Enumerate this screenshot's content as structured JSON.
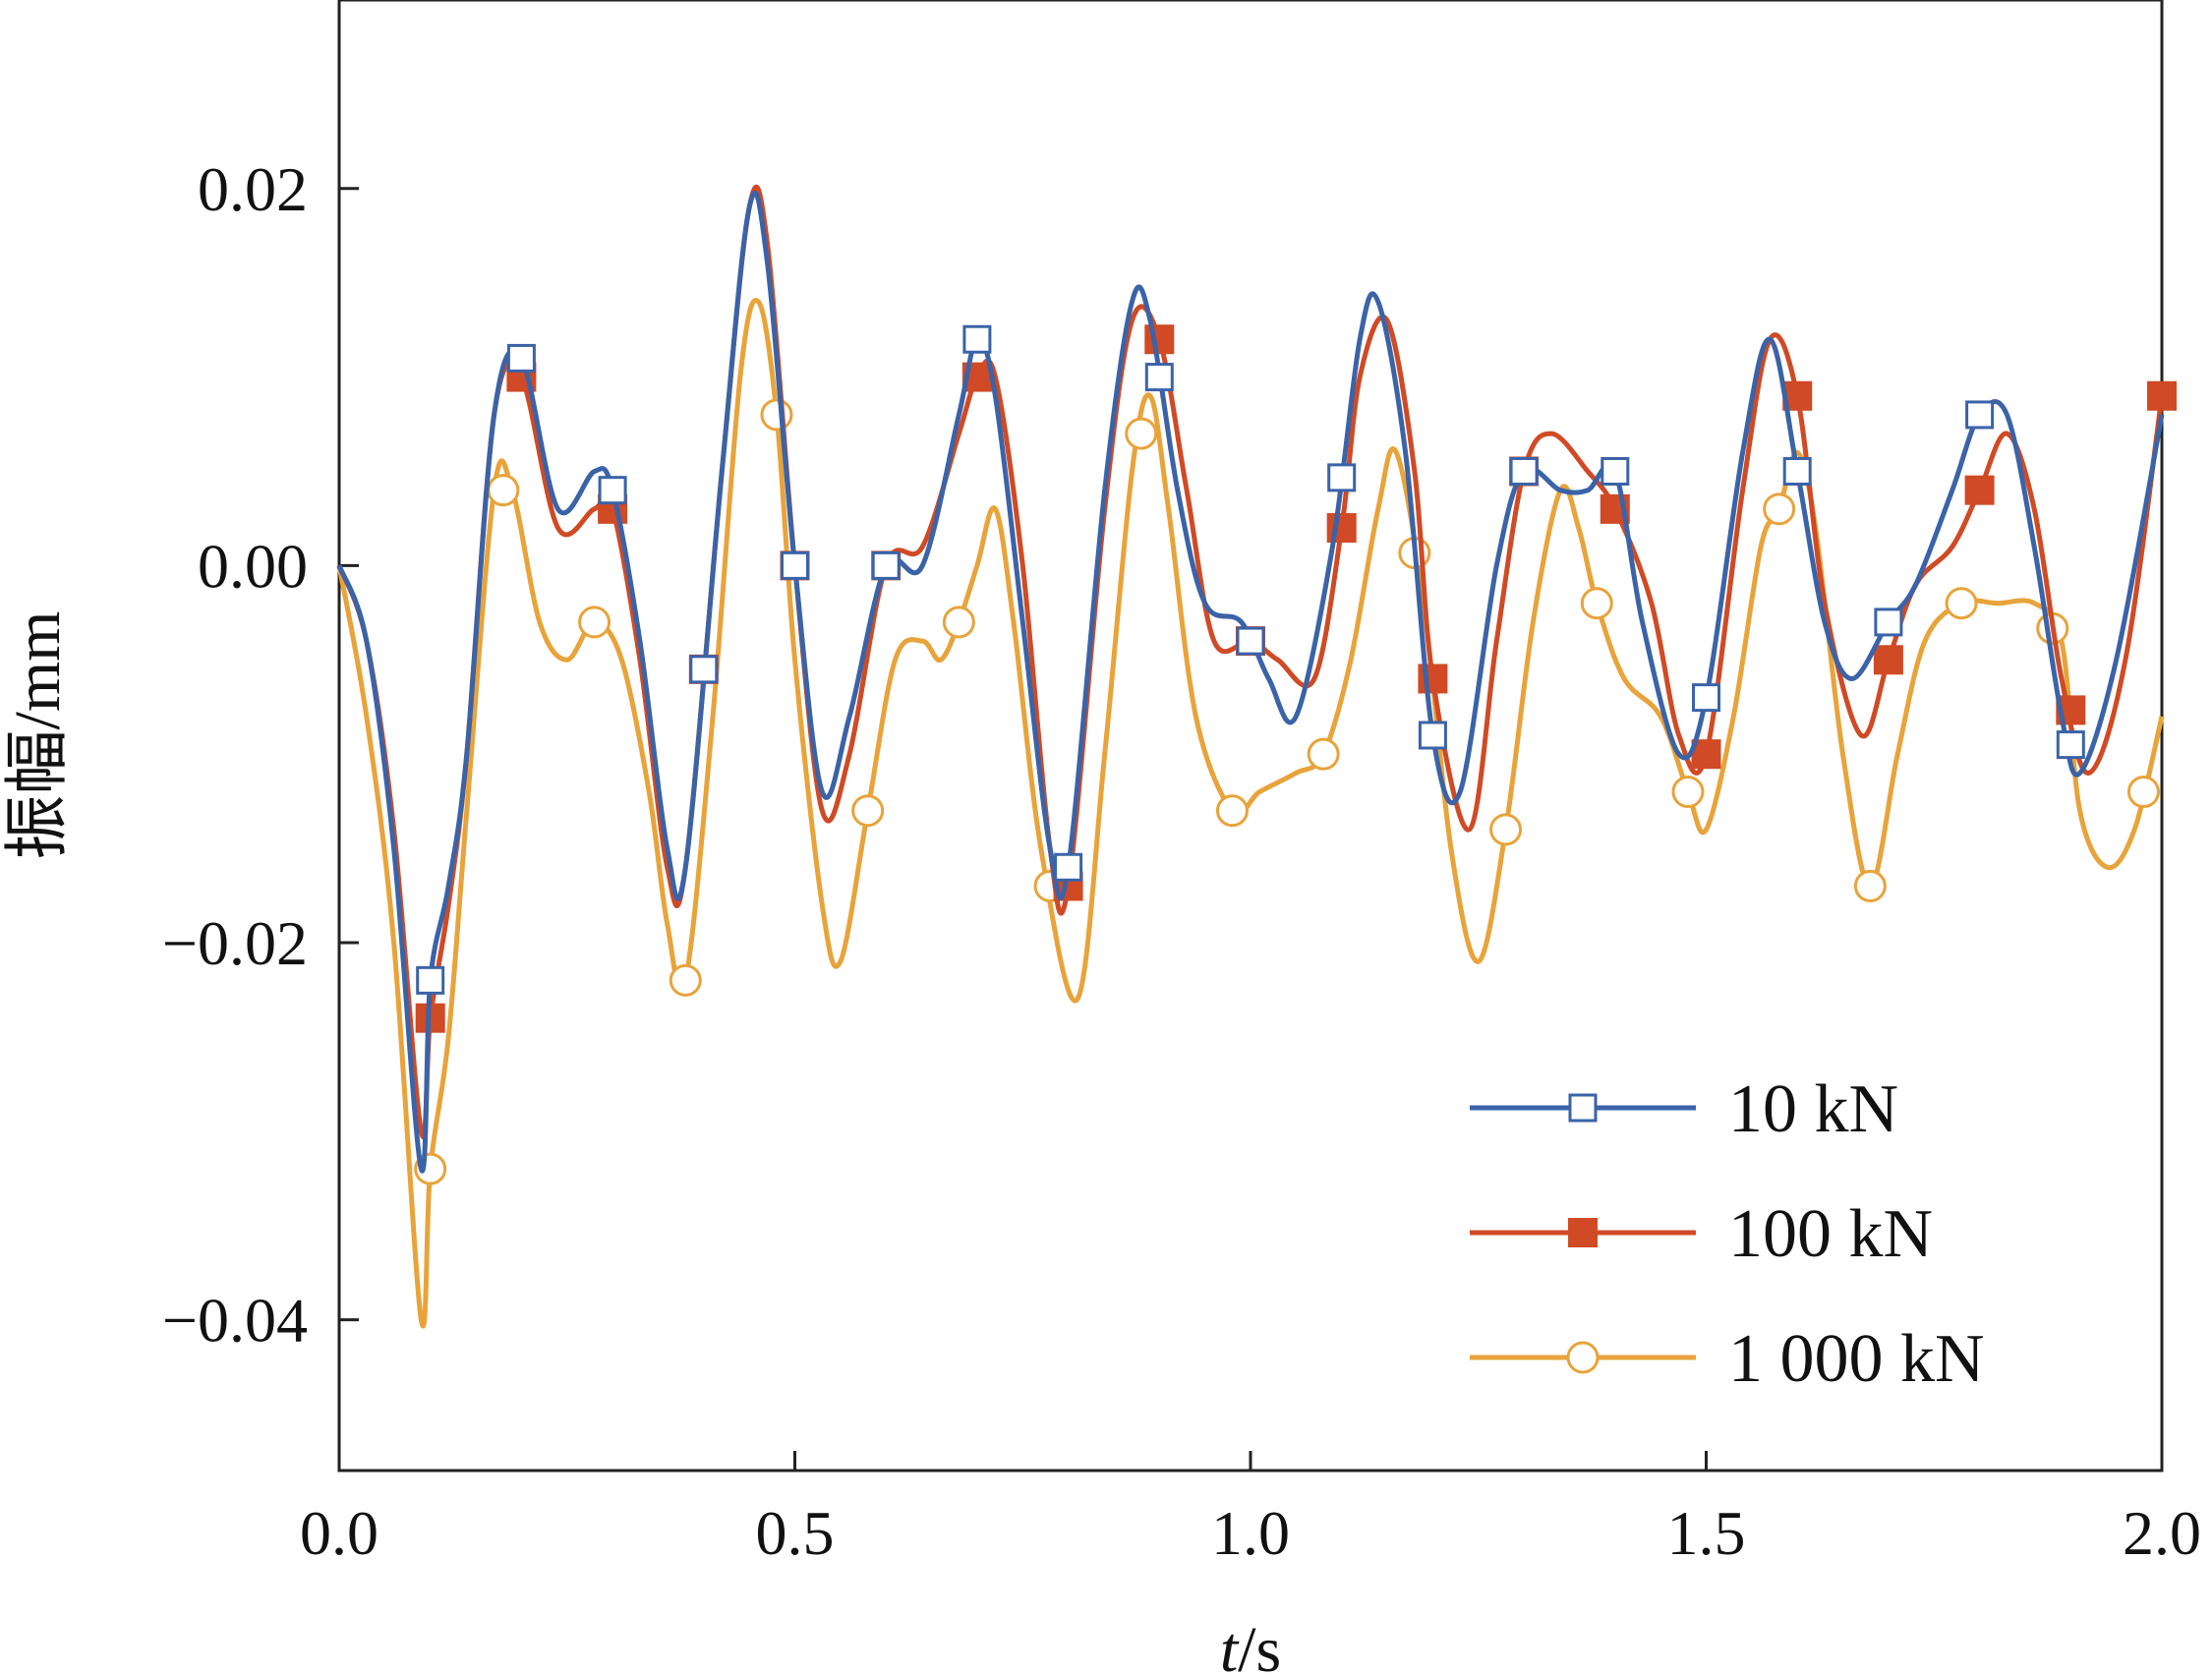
{
  "chart_data": {
    "type": "line",
    "xlabel_italic": "t",
    "xlabel_unit": "/s",
    "ylabel": "振幅/mm",
    "xlim": [
      0.0,
      2.0
    ],
    "ylim": [
      -0.048,
      0.03
    ],
    "x_ticks": [
      0.0,
      0.5,
      1.0,
      1.5,
      2.0
    ],
    "x_tick_labels": [
      "0.0",
      "0.5",
      "1.0",
      "1.5",
      "2.0"
    ],
    "y_ticks": [
      0.02,
      0.0,
      -0.02,
      -0.04
    ],
    "y_tick_labels": [
      "0.02",
      "0.00",
      "−0.02",
      "−0.04"
    ],
    "grid": false,
    "legend_position": "bottom-right",
    "series": [
      {
        "name": "10 kN",
        "color": "#3a63a8",
        "marker": "square-open",
        "points": [
          [
            0.0,
            0.0
          ],
          [
            0.03,
            -0.004
          ],
          [
            0.06,
            -0.015
          ],
          [
            0.09,
            -0.032
          ],
          [
            0.1,
            -0.022
          ],
          [
            0.12,
            -0.017
          ],
          [
            0.14,
            -0.01
          ],
          [
            0.17,
            0.008
          ],
          [
            0.2,
            0.011
          ],
          [
            0.24,
            0.003
          ],
          [
            0.28,
            0.005
          ],
          [
            0.3,
            0.004
          ],
          [
            0.33,
            -0.004
          ],
          [
            0.36,
            -0.015
          ],
          [
            0.38,
            -0.016
          ],
          [
            0.42,
            0.005
          ],
          [
            0.45,
            0.019
          ],
          [
            0.47,
            0.016
          ],
          [
            0.5,
            0.0
          ],
          [
            0.53,
            -0.012
          ],
          [
            0.56,
            -0.008
          ],
          [
            0.6,
            0.0
          ],
          [
            0.64,
            0.0
          ],
          [
            0.68,
            0.008
          ],
          [
            0.7,
            0.012
          ],
          [
            0.72,
            0.009
          ],
          [
            0.75,
            -0.003
          ],
          [
            0.78,
            -0.015
          ],
          [
            0.8,
            -0.016
          ],
          [
            0.84,
            0.004
          ],
          [
            0.87,
            0.014
          ],
          [
            0.89,
            0.013
          ],
          [
            0.92,
            0.004
          ],
          [
            0.95,
            -0.002
          ],
          [
            0.99,
            -0.003
          ],
          [
            1.02,
            -0.006
          ],
          [
            1.05,
            -0.008
          ],
          [
            1.09,
            0.001
          ],
          [
            1.12,
            0.012
          ],
          [
            1.14,
            0.014
          ],
          [
            1.17,
            0.006
          ],
          [
            1.2,
            -0.009
          ],
          [
            1.23,
            -0.012
          ],
          [
            1.27,
            0.0
          ],
          [
            1.3,
            0.005
          ],
          [
            1.34,
            0.004
          ],
          [
            1.37,
            0.004
          ],
          [
            1.4,
            0.005
          ],
          [
            1.43,
            -0.003
          ],
          [
            1.47,
            -0.01
          ],
          [
            1.5,
            -0.007
          ],
          [
            1.54,
            0.006
          ],
          [
            1.57,
            0.012
          ],
          [
            1.6,
            0.005
          ],
          [
            1.63,
            -0.003
          ],
          [
            1.66,
            -0.006
          ],
          [
            1.7,
            -0.003
          ],
          [
            1.73,
            -0.001
          ],
          [
            1.77,
            0.004
          ],
          [
            1.8,
            0.008
          ],
          [
            1.83,
            0.008
          ],
          [
            1.86,
            0.001
          ],
          [
            1.89,
            -0.008
          ],
          [
            1.91,
            -0.011
          ],
          [
            1.95,
            -0.005
          ],
          [
            2.0,
            0.008
          ]
        ],
        "marker_x": [
          0.1,
          0.2,
          0.3,
          0.4,
          0.5,
          0.6,
          0.7,
          0.8,
          0.9,
          1.0,
          1.1,
          1.2,
          1.3,
          1.4,
          1.5,
          1.6,
          1.7,
          1.8,
          1.9
        ]
      },
      {
        "name": "100 kN",
        "color": "#d04a25",
        "marker": "square-filled",
        "points": [
          [
            0.0,
            0.0
          ],
          [
            0.03,
            -0.004
          ],
          [
            0.06,
            -0.014
          ],
          [
            0.09,
            -0.03
          ],
          [
            0.1,
            -0.024
          ],
          [
            0.12,
            -0.018
          ],
          [
            0.14,
            -0.01
          ],
          [
            0.17,
            0.008
          ],
          [
            0.2,
            0.01
          ],
          [
            0.24,
            0.002
          ],
          [
            0.28,
            0.003
          ],
          [
            0.3,
            0.003
          ],
          [
            0.33,
            -0.005
          ],
          [
            0.36,
            -0.016
          ],
          [
            0.38,
            -0.016
          ],
          [
            0.42,
            0.005
          ],
          [
            0.45,
            0.019
          ],
          [
            0.47,
            0.017
          ],
          [
            0.5,
            0.0
          ],
          [
            0.53,
            -0.013
          ],
          [
            0.56,
            -0.01
          ],
          [
            0.6,
            0.0
          ],
          [
            0.64,
            0.001
          ],
          [
            0.68,
            0.007
          ],
          [
            0.7,
            0.01
          ],
          [
            0.72,
            0.01
          ],
          [
            0.75,
            0.0
          ],
          [
            0.78,
            -0.015
          ],
          [
            0.8,
            -0.017
          ],
          [
            0.84,
            0.003
          ],
          [
            0.87,
            0.013
          ],
          [
            0.9,
            0.012
          ],
          [
            0.93,
            0.004
          ],
          [
            0.96,
            -0.004
          ],
          [
            1.0,
            -0.004
          ],
          [
            1.03,
            -0.005
          ],
          [
            1.07,
            -0.006
          ],
          [
            1.1,
            0.002
          ],
          [
            1.12,
            0.01
          ],
          [
            1.15,
            0.013
          ],
          [
            1.18,
            0.005
          ],
          [
            1.2,
            -0.006
          ],
          [
            1.24,
            -0.014
          ],
          [
            1.27,
            -0.004
          ],
          [
            1.3,
            0.005
          ],
          [
            1.33,
            0.007
          ],
          [
            1.37,
            0.005
          ],
          [
            1.4,
            0.003
          ],
          [
            1.44,
            -0.002
          ],
          [
            1.47,
            -0.009
          ],
          [
            1.5,
            -0.01
          ],
          [
            1.54,
            0.004
          ],
          [
            1.57,
            0.012
          ],
          [
            1.6,
            0.009
          ],
          [
            1.63,
            -0.002
          ],
          [
            1.67,
            -0.009
          ],
          [
            1.7,
            -0.005
          ],
          [
            1.73,
            -0.001
          ],
          [
            1.77,
            0.001
          ],
          [
            1.8,
            0.004
          ],
          [
            1.83,
            0.007
          ],
          [
            1.86,
            0.003
          ],
          [
            1.89,
            -0.006
          ],
          [
            1.92,
            -0.011
          ],
          [
            1.96,
            -0.005
          ],
          [
            2.0,
            0.009
          ]
        ],
        "marker_x": [
          0.1,
          0.2,
          0.3,
          0.4,
          0.5,
          0.6,
          0.7,
          0.8,
          0.9,
          1.0,
          1.1,
          1.2,
          1.3,
          1.4,
          1.5,
          1.6,
          1.7,
          1.8,
          1.9,
          2.0
        ]
      },
      {
        "name": "1 000 kN",
        "color": "#e8a33a",
        "marker": "circle-open",
        "points": [
          [
            0.0,
            0.0
          ],
          [
            0.03,
            -0.008
          ],
          [
            0.06,
            -0.02
          ],
          [
            0.09,
            -0.04
          ],
          [
            0.1,
            -0.032
          ],
          [
            0.12,
            -0.025
          ],
          [
            0.14,
            -0.013
          ],
          [
            0.17,
            0.004
          ],
          [
            0.19,
            0.004
          ],
          [
            0.22,
            -0.003
          ],
          [
            0.25,
            -0.005
          ],
          [
            0.28,
            -0.003
          ],
          [
            0.31,
            -0.005
          ],
          [
            0.34,
            -0.012
          ],
          [
            0.36,
            -0.019
          ],
          [
            0.38,
            -0.022
          ],
          [
            0.41,
            -0.008
          ],
          [
            0.44,
            0.01
          ],
          [
            0.46,
            0.014
          ],
          [
            0.48,
            0.008
          ],
          [
            0.5,
            -0.005
          ],
          [
            0.53,
            -0.018
          ],
          [
            0.55,
            -0.021
          ],
          [
            0.58,
            -0.013
          ],
          [
            0.61,
            -0.005
          ],
          [
            0.64,
            -0.004
          ],
          [
            0.66,
            -0.005
          ],
          [
            0.68,
            -0.003
          ],
          [
            0.7,
            0.0
          ],
          [
            0.72,
            0.003
          ],
          [
            0.74,
            -0.003
          ],
          [
            0.77,
            -0.015
          ],
          [
            0.81,
            -0.023
          ],
          [
            0.84,
            -0.01
          ],
          [
            0.87,
            0.005
          ],
          [
            0.89,
            0.009
          ],
          [
            0.91,
            0.003
          ],
          [
            0.94,
            -0.008
          ],
          [
            0.98,
            -0.013
          ],
          [
            1.01,
            -0.012
          ],
          [
            1.05,
            -0.011
          ],
          [
            1.08,
            -0.01
          ],
          [
            1.11,
            -0.005
          ],
          [
            1.14,
            0.003
          ],
          [
            1.16,
            0.006
          ],
          [
            1.19,
            -0.002
          ],
          [
            1.22,
            -0.015
          ],
          [
            1.25,
            -0.021
          ],
          [
            1.28,
            -0.014
          ],
          [
            1.31,
            -0.003
          ],
          [
            1.34,
            0.004
          ],
          [
            1.36,
            0.002
          ],
          [
            1.38,
            -0.002
          ],
          [
            1.41,
            -0.006
          ],
          [
            1.45,
            -0.008
          ],
          [
            1.48,
            -0.012
          ],
          [
            1.5,
            -0.014
          ],
          [
            1.53,
            -0.008
          ],
          [
            1.56,
            0.001
          ],
          [
            1.58,
            0.003
          ],
          [
            1.6,
            0.006
          ],
          [
            1.62,
            0.002
          ],
          [
            1.65,
            -0.01
          ],
          [
            1.68,
            -0.017
          ],
          [
            1.71,
            -0.01
          ],
          [
            1.74,
            -0.004
          ],
          [
            1.78,
            -0.002
          ],
          [
            1.82,
            -0.002
          ],
          [
            1.86,
            -0.002
          ],
          [
            1.89,
            -0.004
          ],
          [
            1.91,
            -0.013
          ],
          [
            1.94,
            -0.016
          ],
          [
            1.97,
            -0.014
          ],
          [
            2.0,
            -0.008
          ]
        ],
        "marker_x": [
          0.1,
          0.18,
          0.28,
          0.38,
          0.48,
          0.58,
          0.68,
          0.78,
          0.88,
          0.98,
          1.08,
          1.18,
          1.28,
          1.38,
          1.48,
          1.58,
          1.68,
          1.78,
          1.88,
          1.98
        ]
      }
    ]
  }
}
